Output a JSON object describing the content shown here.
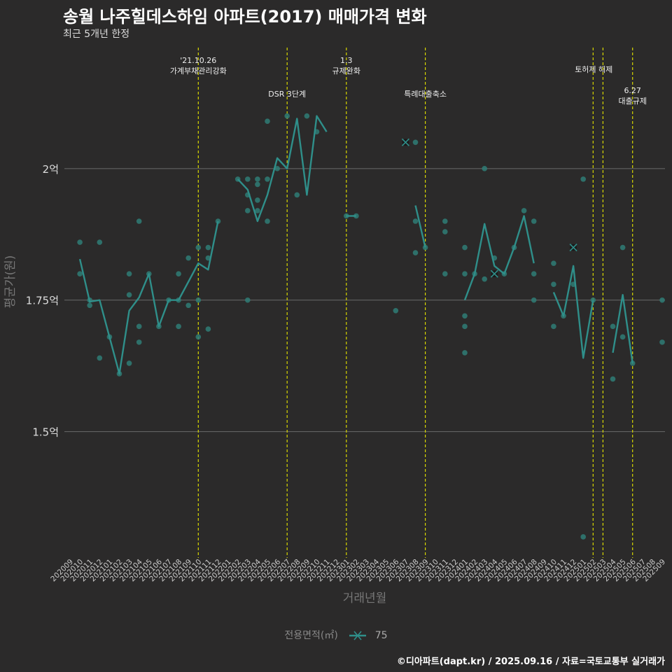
{
  "title": "송월 나주힐데스하임 아파트(2017) 매매가격 변화",
  "subtitle": "최근 5개년 한정",
  "footer": "©디아파트(dapt.kr) / 2025.09.16 / 자료=국토교통부 실거래가",
  "legend": {
    "title": "전용면적(㎡)",
    "item": "75"
  },
  "colors": {
    "series": "#2f8f8a",
    "point": "#2f7d76",
    "vline": "#d8d800",
    "grid": "#6a6a6a",
    "bg": "#2b2a2a"
  },
  "chart_data": {
    "type": "line",
    "xlabel": "거래년월",
    "ylabel": "평균가(원)",
    "categories": [
      "202009",
      "202010",
      "202011",
      "202012",
      "202101",
      "202102",
      "202103",
      "202104",
      "202105",
      "202106",
      "202107",
      "202108",
      "202109",
      "202110",
      "202111",
      "202112",
      "202201",
      "202202",
      "202203",
      "202204",
      "202205",
      "202206",
      "202207",
      "202208",
      "202209",
      "202210",
      "202211",
      "202212",
      "202301",
      "202302",
      "202303",
      "202304",
      "202305",
      "202306",
      "202307",
      "202308",
      "202309",
      "202310",
      "202311",
      "202312",
      "202401",
      "202402",
      "202403",
      "202404",
      "202405",
      "202406",
      "202407",
      "202408",
      "202409",
      "202410",
      "202411",
      "202412",
      "202501",
      "202502",
      "202503",
      "202504",
      "202505",
      "202506",
      "202507",
      "202508",
      "202509"
    ],
    "yticks": [
      {
        "value": 150000000,
        "label": "1.5억"
      },
      {
        "value": 175000000,
        "label": "1.75억"
      },
      {
        "value": 200000000,
        "label": "2억"
      }
    ],
    "ylim": [
      126000000,
      223000000
    ],
    "series": [
      {
        "name": "75",
        "segments": [
          [
            [
              "202010",
              182800000
            ],
            [
              "202011",
              174700000
            ],
            [
              "202012",
              175000000
            ],
            [
              "202101",
              168000000
            ],
            [
              "202102",
              161000000
            ],
            [
              "202103",
              173000000
            ],
            [
              "202104",
              175500000
            ],
            [
              "202105",
              180000000
            ],
            [
              "202106",
              170000000
            ],
            [
              "202107",
              175000000
            ],
            [
              "202108",
              175000000
            ],
            [
              "202109",
              178500000
            ],
            [
              "202110",
              182000000
            ],
            [
              "202111",
              180800000
            ],
            [
              "202112",
              190000000
            ]
          ],
          [
            [
              "202202",
              198000000
            ],
            [
              "202203",
              196000000
            ],
            [
              "202204",
              190000000
            ],
            [
              "202205",
              195000000
            ],
            [
              "202206",
              202000000
            ],
            [
              "202207",
              200000000
            ],
            [
              "202208",
              209500000
            ],
            [
              "202209",
              195000000
            ],
            [
              "202210",
              210000000
            ],
            [
              "202211",
              207000000
            ]
          ],
          [
            [
              "202301",
              191000000
            ],
            [
              "202302",
              191000000
            ]
          ],
          [
            [
              "202308",
              193000000
            ],
            [
              "202309",
              185000000
            ]
          ],
          [
            [
              "202401",
              175000000
            ],
            [
              "202402",
              180000000
            ],
            [
              "202403",
              189500000
            ],
            [
              "202404",
              181500000
            ],
            [
              "202405",
              180000000
            ],
            [
              "202406",
              185000000
            ],
            [
              "202407",
              191000000
            ],
            [
              "202408",
              182000000
            ]
          ],
          [
            [
              "202410",
              176500000
            ],
            [
              "202411",
              172000000
            ],
            [
              "202412",
              181500000
            ],
            [
              "202501",
              164000000
            ],
            [
              "202502",
              175000000
            ]
          ],
          [
            [
              "202504",
              165000000
            ],
            [
              "202505",
              176000000
            ],
            [
              "202506",
              163000000
            ]
          ]
        ]
      }
    ],
    "points": [
      [
        "202010",
        186000000
      ],
      [
        "202010",
        180000000
      ],
      [
        "202011",
        174000000
      ],
      [
        "202011",
        175000000
      ],
      [
        "202012",
        186000000
      ],
      [
        "202012",
        164000000
      ],
      [
        "202101",
        168000000
      ],
      [
        "202102",
        161000000
      ],
      [
        "202103",
        180000000
      ],
      [
        "202103",
        176000000
      ],
      [
        "202103",
        163000000
      ],
      [
        "202104",
        190000000
      ],
      [
        "202104",
        170000000
      ],
      [
        "202104",
        167000000
      ],
      [
        "202105",
        180000000
      ],
      [
        "202106",
        170000000
      ],
      [
        "202107",
        175000000
      ],
      [
        "202108",
        180000000
      ],
      [
        "202108",
        175000000
      ],
      [
        "202108",
        170000000
      ],
      [
        "202109",
        183000000
      ],
      [
        "202109",
        174000000
      ],
      [
        "202110",
        185000000
      ],
      [
        "202110",
        175000000
      ],
      [
        "202110",
        168000000
      ],
      [
        "202111",
        185000000
      ],
      [
        "202111",
        183000000
      ],
      [
        "202111",
        169500000
      ],
      [
        "202112",
        190000000
      ],
      [
        "202202",
        198000000
      ],
      [
        "202203",
        198000000
      ],
      [
        "202203",
        195000000
      ],
      [
        "202203",
        192000000
      ],
      [
        "202203",
        175000000
      ],
      [
        "202204",
        198000000
      ],
      [
        "202204",
        197000000
      ],
      [
        "202204",
        194000000
      ],
      [
        "202204",
        192000000
      ],
      [
        "202205",
        209000000
      ],
      [
        "202205",
        198000000
      ],
      [
        "202205",
        190000000
      ],
      [
        "202206",
        200000000
      ],
      [
        "202207",
        210000000
      ],
      [
        "202208",
        195000000
      ],
      [
        "202209",
        210000000
      ],
      [
        "202210",
        207000000
      ],
      [
        "202301",
        191000000
      ],
      [
        "202302",
        191000000
      ],
      [
        "202306",
        173000000
      ],
      [
        "202307",
        205000000
      ],
      [
        "202308",
        205000000
      ],
      [
        "202308",
        190000000
      ],
      [
        "202308",
        184000000
      ],
      [
        "202309",
        185000000
      ],
      [
        "202311",
        190000000
      ],
      [
        "202311",
        188000000
      ],
      [
        "202311",
        180000000
      ],
      [
        "202401",
        185000000
      ],
      [
        "202401",
        180000000
      ],
      [
        "202401",
        172000000
      ],
      [
        "202401",
        170000000
      ],
      [
        "202401",
        165000000
      ],
      [
        "202402",
        180000000
      ],
      [
        "202403",
        200000000
      ],
      [
        "202403",
        179000000
      ],
      [
        "202404",
        183000000
      ],
      [
        "202404",
        180000000
      ],
      [
        "202405",
        180000000
      ],
      [
        "202406",
        185000000
      ],
      [
        "202407",
        192000000
      ],
      [
        "202408",
        190000000
      ],
      [
        "202408",
        180000000
      ],
      [
        "202408",
        175000000
      ],
      [
        "202410",
        182000000
      ],
      [
        "202410",
        178000000
      ],
      [
        "202410",
        170000000
      ],
      [
        "202411",
        172000000
      ],
      [
        "202412",
        185000000
      ],
      [
        "202412",
        178000000
      ],
      [
        "202501",
        198000000
      ],
      [
        "202501",
        130000000
      ],
      [
        "202502",
        175000000
      ],
      [
        "202504",
        170000000
      ],
      [
        "202504",
        160000000
      ],
      [
        "202505",
        185000000
      ],
      [
        "202505",
        168000000
      ],
      [
        "202506",
        163000000
      ],
      [
        "202509",
        175000000
      ],
      [
        "202509",
        167000000
      ]
    ],
    "cross_points": [
      [
        "202307",
        205000000
      ],
      [
        "202404",
        180000000
      ],
      [
        "202412",
        185000000
      ]
    ],
    "events": [
      {
        "x": "202110",
        "lines": [
          "'21.10.26",
          "가계부채관리강화"
        ],
        "row": 1
      },
      {
        "x": "202207",
        "lines": [
          "DSR 3단계"
        ],
        "row": 2
      },
      {
        "x": "202301",
        "lines": [
          "1.3",
          "규제완화"
        ],
        "row": 1
      },
      {
        "x": "202309",
        "lines": [
          "특례대출축소"
        ],
        "row": 2
      },
      {
        "x": "202502",
        "lines": [
          "토허제 해제"
        ],
        "row": 1,
        "anchor": "end"
      },
      {
        "x": "202503",
        "lines": [],
        "row": 1
      },
      {
        "x": "202506",
        "lines": [
          "6.27",
          "대출규제"
        ],
        "row": 2
      }
    ]
  }
}
